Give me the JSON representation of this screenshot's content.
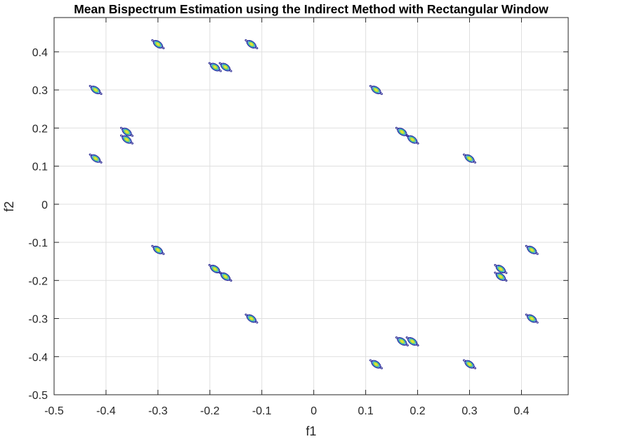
{
  "chart_data": {
    "type": "contour",
    "title": "Mean Bispectrum Estimation using the Indirect Method with Rectangular Window",
    "xlabel": "f1",
    "ylabel": "f2",
    "xlim": [
      -0.5,
      0.49
    ],
    "ylim": [
      -0.5,
      0.49
    ],
    "x_ticks": [
      -0.5,
      -0.4,
      -0.3,
      -0.2,
      -0.1,
      0,
      0.1,
      0.2,
      0.3,
      0.4
    ],
    "x_tick_labels": [
      "-0.5",
      "-0.4",
      "-0.3",
      "-0.2",
      "-0.1",
      "0",
      "0.1",
      "0.2",
      "0.3",
      "0.4"
    ],
    "y_ticks": [
      -0.5,
      -0.4,
      -0.3,
      -0.2,
      -0.1,
      0,
      0.1,
      0.2,
      0.3,
      0.4
    ],
    "y_tick_labels": [
      "-0.5",
      "-0.4",
      "-0.3",
      "-0.2",
      "-0.1",
      "0",
      "0.1",
      "0.2",
      "0.3",
      "0.4"
    ],
    "grid": true,
    "contour_colors": [
      "#1f1f8f",
      "#3f6fd8",
      "#2fb7a0",
      "#a5d640",
      "#e6e23a"
    ],
    "peaks": [
      {
        "x": -0.3,
        "y": 0.42
      },
      {
        "x": -0.12,
        "y": 0.42
      },
      {
        "x": -0.19,
        "y": 0.36
      },
      {
        "x": -0.17,
        "y": 0.36
      },
      {
        "x": -0.42,
        "y": 0.3
      },
      {
        "x": 0.12,
        "y": 0.3
      },
      {
        "x": -0.36,
        "y": 0.19
      },
      {
        "x": -0.36,
        "y": 0.17
      },
      {
        "x": 0.17,
        "y": 0.19
      },
      {
        "x": 0.19,
        "y": 0.17
      },
      {
        "x": -0.42,
        "y": 0.12
      },
      {
        "x": 0.3,
        "y": 0.12
      },
      {
        "x": -0.3,
        "y": -0.12
      },
      {
        "x": 0.42,
        "y": -0.12
      },
      {
        "x": -0.19,
        "y": -0.17
      },
      {
        "x": -0.17,
        "y": -0.19
      },
      {
        "x": 0.36,
        "y": -0.17
      },
      {
        "x": 0.36,
        "y": -0.19
      },
      {
        "x": -0.12,
        "y": -0.3
      },
      {
        "x": 0.42,
        "y": -0.3
      },
      {
        "x": 0.17,
        "y": -0.36
      },
      {
        "x": 0.19,
        "y": -0.36
      },
      {
        "x": 0.12,
        "y": -0.42
      },
      {
        "x": 0.3,
        "y": -0.42
      }
    ]
  }
}
